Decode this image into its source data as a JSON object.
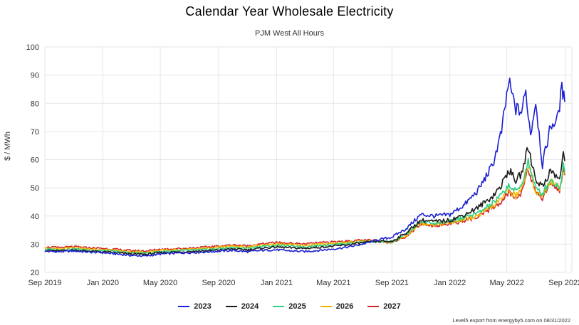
{
  "chart": {
    "title": "Calendar Year Wholesale Electricity",
    "subtitle": "PJM West All Hours",
    "ylabel": "$ / MWh",
    "credit": "Level5 export from energyby5.com on 08/31/2022"
  },
  "chart_data": {
    "type": "line",
    "title": "Calendar Year Wholesale Electricity",
    "subtitle": "PJM West All Hours",
    "xlabel": "",
    "ylabel": "$ / MWh",
    "ylim": [
      20,
      100
    ],
    "yticks": [
      20,
      30,
      40,
      50,
      60,
      70,
      80,
      90,
      100
    ],
    "xlim": [
      "2019-09-01",
      "2022-09-15"
    ],
    "xticks": [
      {
        "date": "2019-09-01",
        "label": "Sep 2019"
      },
      {
        "date": "2020-01-01",
        "label": "Jan 2020"
      },
      {
        "date": "2020-05-01",
        "label": "May 2020"
      },
      {
        "date": "2020-09-01",
        "label": "Sep 2020"
      },
      {
        "date": "2021-01-01",
        "label": "Jan 2021"
      },
      {
        "date": "2021-05-01",
        "label": "May 2021"
      },
      {
        "date": "2021-09-01",
        "label": "Sep 2021"
      },
      {
        "date": "2022-01-01",
        "label": "Jan 2022"
      },
      {
        "date": "2022-05-01",
        "label": "May 2022"
      },
      {
        "date": "2022-09-01",
        "label": "Sep 2022"
      }
    ],
    "grid": true,
    "legend_position": "bottom",
    "series": [
      {
        "name": "2023",
        "color": "#1b1fd1",
        "points": [
          [
            "2019-09-01",
            27.5
          ],
          [
            "2019-10-01",
            27.3
          ],
          [
            "2019-11-01",
            27.6
          ],
          [
            "2019-12-01",
            27.2
          ],
          [
            "2020-01-01",
            27.0
          ],
          [
            "2020-02-01",
            26.5
          ],
          [
            "2020-03-01",
            26.0
          ],
          [
            "2020-04-01",
            25.8
          ],
          [
            "2020-05-01",
            26.5
          ],
          [
            "2020-06-01",
            26.8
          ],
          [
            "2020-07-01",
            27.0
          ],
          [
            "2020-08-01",
            27.2
          ],
          [
            "2020-09-01",
            27.5
          ],
          [
            "2020-10-01",
            27.8
          ],
          [
            "2020-11-01",
            27.3
          ],
          [
            "2020-12-01",
            27.8
          ],
          [
            "2021-01-01",
            28.0
          ],
          [
            "2021-02-01",
            27.6
          ],
          [
            "2021-03-01",
            27.4
          ],
          [
            "2021-04-01",
            27.8
          ],
          [
            "2021-05-01",
            28.3
          ],
          [
            "2021-06-01",
            29.0
          ],
          [
            "2021-07-01",
            30.0
          ],
          [
            "2021-08-01",
            31.5
          ],
          [
            "2021-09-01",
            32.5
          ],
          [
            "2021-10-01",
            35.5
          ],
          [
            "2021-11-01",
            40.5
          ],
          [
            "2021-12-01",
            40.0
          ],
          [
            "2022-01-01",
            40.5
          ],
          [
            "2022-02-01",
            44.0
          ],
          [
            "2022-03-01",
            49.0
          ],
          [
            "2022-04-01",
            58.0
          ],
          [
            "2022-04-20",
            70.0
          ],
          [
            "2022-05-05",
            87.5
          ],
          [
            "2022-05-20",
            78.0
          ],
          [
            "2022-06-01",
            77.0
          ],
          [
            "2022-06-10",
            84.0
          ],
          [
            "2022-06-20",
            69.0
          ],
          [
            "2022-07-01",
            81.0
          ],
          [
            "2022-07-15",
            58.0
          ],
          [
            "2022-08-01",
            72.0
          ],
          [
            "2022-08-15",
            74.0
          ],
          [
            "2022-08-25",
            85.0
          ],
          [
            "2022-08-31",
            80.5
          ]
        ]
      },
      {
        "name": "2024",
        "color": "#1a1a1a",
        "points": [
          [
            "2019-09-01",
            27.8
          ],
          [
            "2019-10-01",
            27.6
          ],
          [
            "2019-11-01",
            27.9
          ],
          [
            "2019-12-01",
            27.5
          ],
          [
            "2020-01-01",
            27.3
          ],
          [
            "2020-02-01",
            26.9
          ],
          [
            "2020-03-01",
            26.5
          ],
          [
            "2020-04-01",
            26.4
          ],
          [
            "2020-05-01",
            27.0
          ],
          [
            "2020-06-01",
            27.2
          ],
          [
            "2020-07-01",
            27.4
          ],
          [
            "2020-08-01",
            27.6
          ],
          [
            "2020-09-01",
            27.9
          ],
          [
            "2020-10-01",
            28.3
          ],
          [
            "2020-11-01",
            28.0
          ],
          [
            "2020-12-01",
            28.6
          ],
          [
            "2021-01-01",
            29.0
          ],
          [
            "2021-02-01",
            28.7
          ],
          [
            "2021-03-01",
            28.5
          ],
          [
            "2021-04-01",
            28.9
          ],
          [
            "2021-05-01",
            29.3
          ],
          [
            "2021-06-01",
            29.8
          ],
          [
            "2021-07-01",
            30.5
          ],
          [
            "2021-08-01",
            31.0
          ],
          [
            "2021-09-01",
            31.0
          ],
          [
            "2021-10-01",
            34.0
          ],
          [
            "2021-11-01",
            38.5
          ],
          [
            "2021-12-01",
            38.0
          ],
          [
            "2022-01-01",
            38.5
          ],
          [
            "2022-02-01",
            40.5
          ],
          [
            "2022-03-01",
            43.0
          ],
          [
            "2022-04-01",
            47.0
          ],
          [
            "2022-04-20",
            51.0
          ],
          [
            "2022-05-05",
            56.5
          ],
          [
            "2022-05-20",
            52.5
          ],
          [
            "2022-06-01",
            55.0
          ],
          [
            "2022-06-15",
            64.5
          ],
          [
            "2022-07-01",
            53.0
          ],
          [
            "2022-07-15",
            50.5
          ],
          [
            "2022-08-01",
            56.0
          ],
          [
            "2022-08-20",
            53.0
          ],
          [
            "2022-08-28",
            62.0
          ],
          [
            "2022-08-31",
            59.5
          ]
        ]
      },
      {
        "name": "2025",
        "color": "#2ecf83",
        "points": [
          [
            "2019-09-01",
            28.2
          ],
          [
            "2019-10-01",
            28.0
          ],
          [
            "2019-11-01",
            28.3
          ],
          [
            "2019-12-01",
            27.9
          ],
          [
            "2020-01-01",
            27.7
          ],
          [
            "2020-02-01",
            27.3
          ],
          [
            "2020-03-01",
            26.9
          ],
          [
            "2020-04-01",
            26.8
          ],
          [
            "2020-05-01",
            27.4
          ],
          [
            "2020-06-01",
            27.6
          ],
          [
            "2020-07-01",
            27.8
          ],
          [
            "2020-08-01",
            28.0
          ],
          [
            "2020-09-01",
            28.4
          ],
          [
            "2020-10-01",
            28.8
          ],
          [
            "2020-11-01",
            28.5
          ],
          [
            "2020-12-01",
            29.2
          ],
          [
            "2021-01-01",
            29.6
          ],
          [
            "2021-02-01",
            29.3
          ],
          [
            "2021-03-01",
            29.1
          ],
          [
            "2021-04-01",
            29.5
          ],
          [
            "2021-05-01",
            29.9
          ],
          [
            "2021-06-01",
            30.3
          ],
          [
            "2021-07-01",
            30.8
          ],
          [
            "2021-08-01",
            30.9
          ],
          [
            "2021-09-01",
            30.8
          ],
          [
            "2021-10-01",
            33.5
          ],
          [
            "2021-11-01",
            38.0
          ],
          [
            "2021-12-01",
            37.5
          ],
          [
            "2022-01-01",
            38.0
          ],
          [
            "2022-02-01",
            39.5
          ],
          [
            "2022-03-01",
            41.0
          ],
          [
            "2022-04-01",
            44.5
          ],
          [
            "2022-04-20",
            47.5
          ],
          [
            "2022-05-05",
            51.0
          ],
          [
            "2022-05-20",
            48.5
          ],
          [
            "2022-06-01",
            51.0
          ],
          [
            "2022-06-15",
            59.5
          ],
          [
            "2022-07-01",
            49.5
          ],
          [
            "2022-07-15",
            48.0
          ],
          [
            "2022-08-01",
            53.0
          ],
          [
            "2022-08-20",
            50.0
          ],
          [
            "2022-08-28",
            57.5
          ],
          [
            "2022-08-31",
            55.5
          ]
        ]
      },
      {
        "name": "2026",
        "color": "#f0b400",
        "points": [
          [
            "2019-09-01",
            28.6
          ],
          [
            "2019-10-01",
            28.4
          ],
          [
            "2019-11-01",
            28.7
          ],
          [
            "2019-12-01",
            28.3
          ],
          [
            "2020-01-01",
            28.1
          ],
          [
            "2020-02-01",
            27.7
          ],
          [
            "2020-03-01",
            27.3
          ],
          [
            "2020-04-01",
            27.2
          ],
          [
            "2020-05-01",
            27.8
          ],
          [
            "2020-06-01",
            28.0
          ],
          [
            "2020-07-01",
            28.2
          ],
          [
            "2020-08-01",
            28.5
          ],
          [
            "2020-09-01",
            28.9
          ],
          [
            "2020-10-01",
            29.3
          ],
          [
            "2020-11-01",
            29.0
          ],
          [
            "2020-12-01",
            29.7
          ],
          [
            "2021-01-01",
            30.1
          ],
          [
            "2021-02-01",
            29.8
          ],
          [
            "2021-03-01",
            29.6
          ],
          [
            "2021-04-01",
            30.0
          ],
          [
            "2021-05-01",
            30.4
          ],
          [
            "2021-06-01",
            30.7
          ],
          [
            "2021-07-01",
            31.1
          ],
          [
            "2021-08-01",
            31.0
          ],
          [
            "2021-09-01",
            30.7
          ],
          [
            "2021-10-01",
            33.0
          ],
          [
            "2021-11-01",
            37.5
          ],
          [
            "2021-12-01",
            37.0
          ],
          [
            "2022-01-01",
            37.5
          ],
          [
            "2022-02-01",
            38.8
          ],
          [
            "2022-03-01",
            40.0
          ],
          [
            "2022-04-01",
            43.5
          ],
          [
            "2022-04-20",
            46.0
          ],
          [
            "2022-05-05",
            49.5
          ],
          [
            "2022-05-20",
            47.0
          ],
          [
            "2022-06-01",
            49.5
          ],
          [
            "2022-06-15",
            58.0
          ],
          [
            "2022-07-01",
            48.5
          ],
          [
            "2022-07-15",
            47.5
          ],
          [
            "2022-08-01",
            52.5
          ],
          [
            "2022-08-20",
            49.5
          ],
          [
            "2022-08-28",
            57.0
          ],
          [
            "2022-08-31",
            55.0
          ]
        ]
      },
      {
        "name": "2027",
        "color": "#d42424",
        "points": [
          [
            "2019-09-01",
            29.0
          ],
          [
            "2019-10-01",
            28.8
          ],
          [
            "2019-11-01",
            29.1
          ],
          [
            "2019-12-01",
            28.7
          ],
          [
            "2020-01-01",
            28.5
          ],
          [
            "2020-02-01",
            28.1
          ],
          [
            "2020-03-01",
            27.7
          ],
          [
            "2020-04-01",
            27.6
          ],
          [
            "2020-05-01",
            28.2
          ],
          [
            "2020-06-01",
            28.4
          ],
          [
            "2020-07-01",
            28.6
          ],
          [
            "2020-08-01",
            28.9
          ],
          [
            "2020-09-01",
            29.3
          ],
          [
            "2020-10-01",
            29.7
          ],
          [
            "2020-11-01",
            29.4
          ],
          [
            "2020-12-01",
            30.1
          ],
          [
            "2021-01-01",
            30.6
          ],
          [
            "2021-02-01",
            30.3
          ],
          [
            "2021-03-01",
            30.1
          ],
          [
            "2021-04-01",
            30.5
          ],
          [
            "2021-05-01",
            30.8
          ],
          [
            "2021-06-01",
            31.1
          ],
          [
            "2021-07-01",
            31.4
          ],
          [
            "2021-08-01",
            31.2
          ],
          [
            "2021-09-01",
            30.6
          ],
          [
            "2021-10-01",
            32.8
          ],
          [
            "2021-11-01",
            37.2
          ],
          [
            "2021-12-01",
            36.7
          ],
          [
            "2022-01-01",
            37.2
          ],
          [
            "2022-02-01",
            38.4
          ],
          [
            "2022-03-01",
            39.5
          ],
          [
            "2022-04-01",
            43.0
          ],
          [
            "2022-04-20",
            45.0
          ],
          [
            "2022-05-05",
            48.5
          ],
          [
            "2022-05-20",
            46.0
          ],
          [
            "2022-06-01",
            48.5
          ],
          [
            "2022-06-15",
            57.5
          ],
          [
            "2022-07-01",
            47.5
          ],
          [
            "2022-07-15",
            46.5
          ],
          [
            "2022-08-01",
            52.0
          ],
          [
            "2022-08-20",
            49.0
          ],
          [
            "2022-08-28",
            56.5
          ],
          [
            "2022-08-31",
            54.5
          ]
        ]
      }
    ]
  }
}
